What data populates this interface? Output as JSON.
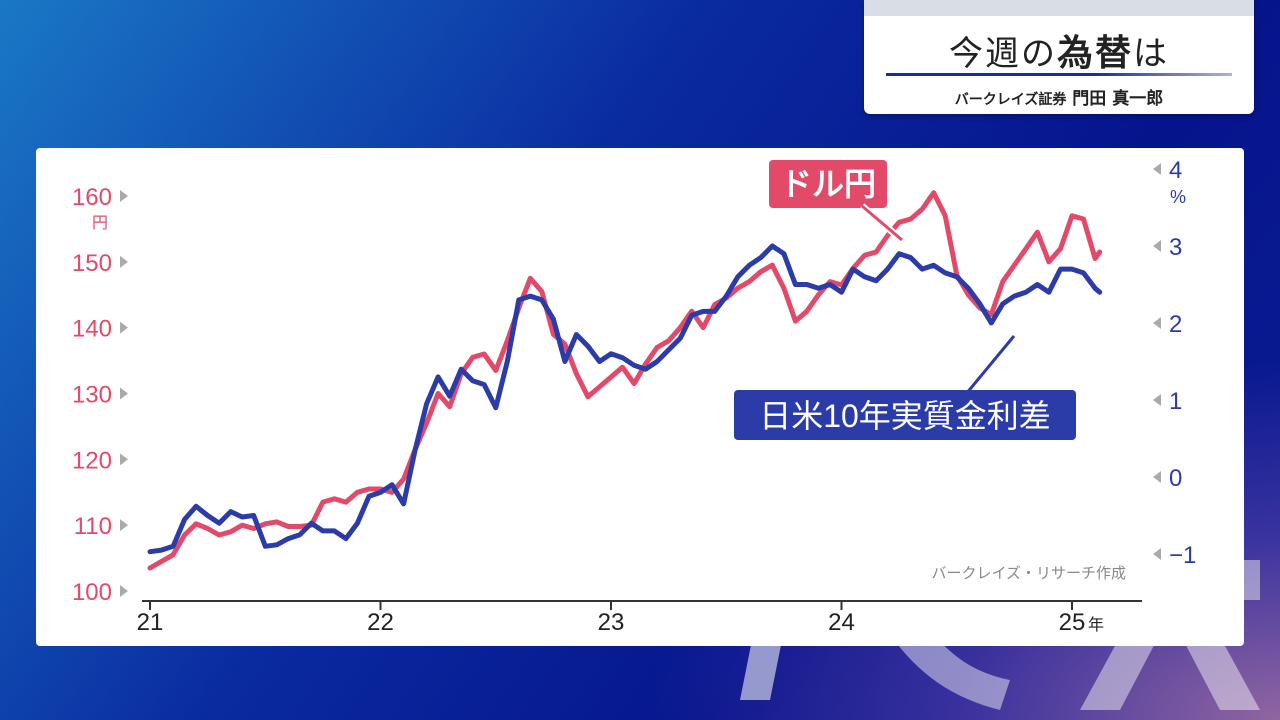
{
  "header": {
    "title_pre": "今週の",
    "title_bold": "為替",
    "title_post": "は",
    "source_org": "バークレイズ証券",
    "analyst": "門田 真一郎"
  },
  "chart_data": {
    "type": "line",
    "credit": "バークレイズ・リサーチ作成",
    "x_ticks": [
      "21",
      "22",
      "23",
      "24",
      "25"
    ],
    "x_unit": "年",
    "left_axis": {
      "unit": "円",
      "ticks": [
        100,
        110,
        120,
        130,
        140,
        150,
        160
      ],
      "range": [
        100,
        160
      ]
    },
    "right_axis": {
      "unit": "%",
      "ticks": [
        "−1",
        "0",
        "1",
        "2",
        "3",
        "4"
      ],
      "range": [
        -1,
        4
      ]
    },
    "colors": {
      "usdjpy": "#e34a6a",
      "spread": "#2b3ca8",
      "left_axis": "#e34a6a",
      "right_axis": "#2b3ca8"
    },
    "series": [
      {
        "name": "ドル円",
        "axis": "left",
        "x": [
          21.0,
          21.05,
          21.1,
          21.15,
          21.2,
          21.25,
          21.3,
          21.35,
          21.4,
          21.45,
          21.5,
          21.55,
          21.6,
          21.65,
          21.7,
          21.75,
          21.8,
          21.85,
          21.9,
          21.95,
          22.0,
          22.05,
          22.1,
          22.15,
          22.2,
          22.25,
          22.3,
          22.35,
          22.4,
          22.45,
          22.5,
          22.55,
          22.6,
          22.65,
          22.7,
          22.75,
          22.8,
          22.85,
          22.9,
          22.95,
          23.0,
          23.05,
          23.1,
          23.15,
          23.2,
          23.25,
          23.3,
          23.35,
          23.4,
          23.45,
          23.5,
          23.55,
          23.6,
          23.65,
          23.7,
          23.75,
          23.8,
          23.85,
          23.9,
          23.95,
          24.0,
          24.05,
          24.1,
          24.15,
          24.2,
          24.25,
          24.3,
          24.35,
          24.4,
          24.45,
          24.5,
          24.55,
          24.6,
          24.65,
          24.7,
          24.75,
          24.8,
          24.85,
          24.9,
          24.95,
          25.0,
          25.05,
          25.1,
          25.12
        ],
        "values": [
          103.5,
          104.5,
          105.5,
          108.5,
          110.2,
          109.5,
          108.5,
          109.0,
          110.0,
          109.5,
          110.2,
          110.5,
          109.8,
          109.8,
          110.0,
          113.5,
          114.0,
          113.5,
          115.0,
          115.5,
          115.5,
          115.0,
          117.0,
          121.5,
          125.5,
          130.0,
          128.0,
          133.0,
          135.5,
          136.0,
          133.5,
          138.0,
          143.0,
          147.5,
          145.5,
          139.0,
          137.5,
          133.0,
          129.5,
          131.0,
          132.5,
          134.0,
          131.5,
          134.5,
          137.0,
          138.0,
          140.0,
          142.5,
          140.0,
          143.5,
          144.5,
          146.0,
          147.0,
          148.5,
          149.5,
          146.0,
          141.0,
          142.5,
          145.0,
          147.0,
          146.5,
          149.0,
          151.0,
          151.5,
          154.0,
          156.0,
          156.5,
          158.0,
          160.5,
          157.0,
          148.0,
          145.0,
          143.0,
          142.0,
          147.0,
          149.5,
          152.0,
          154.5,
          150.0,
          152.0,
          157.0,
          156.5,
          150.5,
          151.5
        ]
      },
      {
        "name": "日米10年実質金利差",
        "axis": "right",
        "x": [
          21.0,
          21.05,
          21.1,
          21.15,
          21.2,
          21.25,
          21.3,
          21.35,
          21.4,
          21.45,
          21.5,
          21.55,
          21.6,
          21.65,
          21.7,
          21.75,
          21.8,
          21.85,
          21.9,
          21.95,
          22.0,
          22.05,
          22.1,
          22.15,
          22.2,
          22.25,
          22.3,
          22.35,
          22.4,
          22.45,
          22.5,
          22.55,
          22.6,
          22.65,
          22.7,
          22.75,
          22.8,
          22.85,
          22.9,
          22.95,
          23.0,
          23.05,
          23.1,
          23.15,
          23.2,
          23.25,
          23.3,
          23.35,
          23.4,
          23.45,
          23.5,
          23.55,
          23.6,
          23.65,
          23.7,
          23.75,
          23.8,
          23.85,
          23.9,
          23.95,
          24.0,
          24.05,
          24.1,
          24.15,
          24.2,
          24.25,
          24.3,
          24.35,
          24.4,
          24.45,
          24.5,
          24.55,
          24.6,
          24.65,
          24.7,
          24.75,
          24.8,
          24.85,
          24.9,
          24.95,
          25.0,
          25.05,
          25.1,
          25.12
        ],
        "values": [
          -0.97,
          -0.95,
          -0.9,
          -0.55,
          -0.38,
          -0.5,
          -0.6,
          -0.45,
          -0.52,
          -0.5,
          -0.9,
          -0.88,
          -0.8,
          -0.75,
          -0.6,
          -0.7,
          -0.7,
          -0.8,
          -0.6,
          -0.25,
          -0.2,
          -0.1,
          -0.35,
          0.35,
          0.95,
          1.3,
          1.05,
          1.4,
          1.25,
          1.2,
          0.9,
          1.5,
          2.3,
          2.35,
          2.3,
          2.05,
          1.5,
          1.85,
          1.7,
          1.5,
          1.6,
          1.55,
          1.45,
          1.4,
          1.5,
          1.65,
          1.8,
          2.1,
          2.15,
          2.15,
          2.35,
          2.6,
          2.75,
          2.85,
          3.0,
          2.9,
          2.5,
          2.5,
          2.45,
          2.5,
          2.4,
          2.7,
          2.6,
          2.55,
          2.7,
          2.9,
          2.85,
          2.7,
          2.75,
          2.65,
          2.6,
          2.45,
          2.25,
          2.0,
          2.25,
          2.35,
          2.4,
          2.5,
          2.4,
          2.7,
          2.7,
          2.65,
          2.45,
          2.4
        ]
      }
    ],
    "callouts": [
      {
        "series": "ドル円",
        "text": "ドル円",
        "fill": "#e34a6a"
      },
      {
        "series": "日米10年実質金利差",
        "text": "日米10年実質金利差",
        "fill": "#2b3ca8"
      }
    ]
  }
}
